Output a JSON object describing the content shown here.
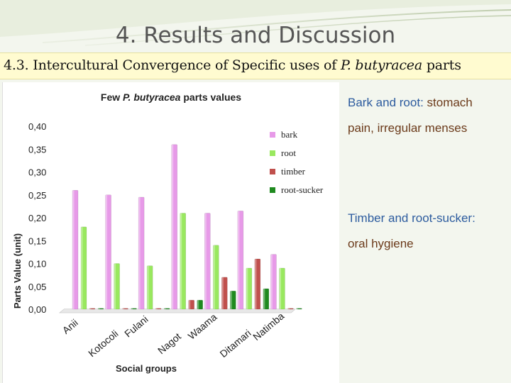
{
  "slide": {
    "title": "4. Results and Discussion",
    "subtitle_prefix": "4.3. Intercultural Convergence of Specific uses of ",
    "subtitle_species": "P. butyracea",
    "subtitle_suffix": " parts"
  },
  "notes": [
    {
      "key": "Bark and root",
      "sep": ": ",
      "value_lines": [
        "stomach",
        "pain, irregular menses"
      ]
    },
    {
      "key": "Timber and root-sucker",
      "sep": ":",
      "value_lines": [
        "oral hygiene"
      ]
    }
  ],
  "colors": {
    "bark": "#e79ae8",
    "root": "#99e85f",
    "timber": "#c0504d",
    "root-sucker": "#1f8a1f"
  },
  "chart_data": {
    "type": "bar",
    "title_prefix": "Few ",
    "title_species": "P. butyracea",
    "title_suffix": " parts values",
    "xlabel": "Social groups",
    "ylabel": "Parts  Value (unit)",
    "categories": [
      "Anii",
      "Kotocoli",
      "Fulani",
      "Nagot",
      "Waama",
      "Ditamari",
      "Natimba"
    ],
    "ylim": [
      0,
      0.4
    ],
    "yticks": [
      0.0,
      0.05,
      0.1,
      0.15,
      0.2,
      0.25,
      0.3,
      0.35,
      0.4
    ],
    "ytick_labels": [
      "0,00",
      "0,05",
      "0,10",
      "0,15",
      "0,20",
      "0,25",
      "0,30",
      "0,35",
      "0,40"
    ],
    "legend_position": "right",
    "grid": false,
    "series": [
      {
        "name": "bark",
        "values": [
          0.26,
          0.25,
          0.245,
          0.36,
          0.21,
          0.215,
          0.12
        ]
      },
      {
        "name": "root",
        "values": [
          0.18,
          0.1,
          0.095,
          0.21,
          0.14,
          0.09,
          0.09
        ]
      },
      {
        "name": "timber",
        "values": [
          0,
          0,
          0,
          0.02,
          0.07,
          0.11,
          0
        ]
      },
      {
        "name": "root-sucker",
        "values": [
          0,
          0,
          0,
          0.02,
          0.04,
          0.045,
          0
        ]
      }
    ]
  }
}
